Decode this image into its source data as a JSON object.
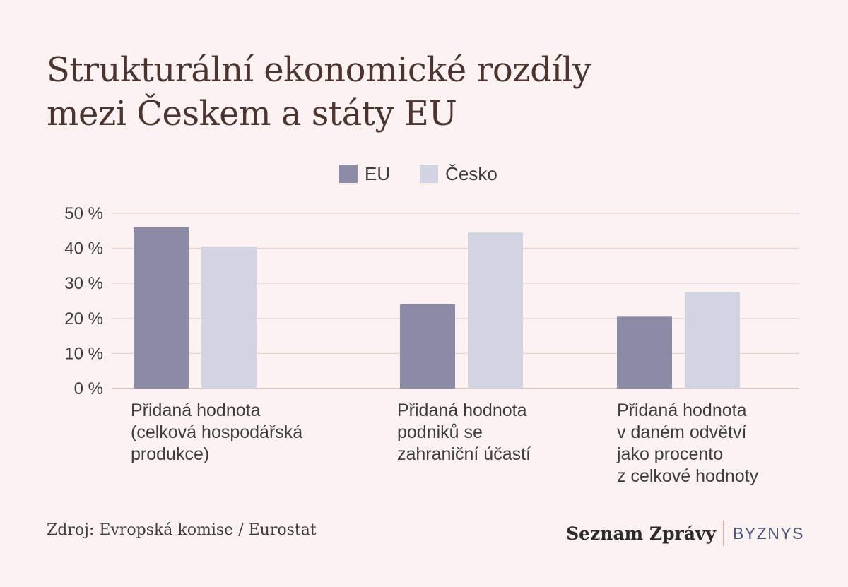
{
  "title_lines": [
    "Strukturální ekonomické rozdíly",
    "mezi Českem a státy EU"
  ],
  "source": "Zdroj: Evropská komise / Eurostat",
  "brand": {
    "name": "Seznam Zprávy",
    "section": "BYZNYS"
  },
  "colors": {
    "EU": "#8b8ba6",
    "Česko": "#d3d4e1",
    "grid": "#e8d2d2",
    "background": "#fcf2f1"
  },
  "chart_data": {
    "type": "bar",
    "categories": [
      "Přidaná hodnota\n(celková hospodářská\nprodukce)",
      "Přidaná hodnota\npodniků se\nzahraniční účastí",
      "Přidaná hodnota\nv daném odvětví\njako procento\nz celkové hodnoty"
    ],
    "series": [
      {
        "name": "EU",
        "values": [
          46,
          24,
          20.5
        ]
      },
      {
        "name": "Česko",
        "values": [
          40.5,
          44.5,
          27.5
        ]
      }
    ],
    "ylim": [
      0,
      50
    ],
    "yticks": [
      "0 %",
      "10 %",
      "20 %",
      "30 %",
      "40 %",
      "50 %"
    ],
    "ytick_values": [
      0,
      10,
      20,
      30,
      40,
      50
    ],
    "legend_position": "top-center",
    "grid": true
  }
}
